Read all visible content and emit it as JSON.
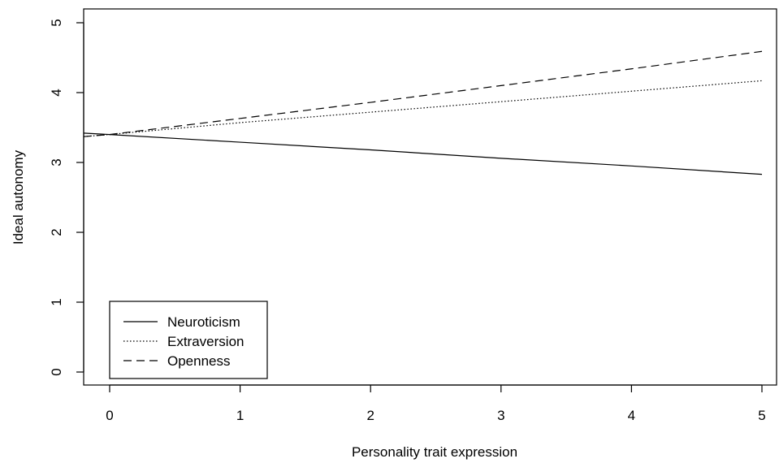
{
  "chart_data": {
    "type": "line",
    "title": "",
    "xlabel": "Personality trait expression",
    "ylabel": "Ideal autonomy",
    "xlim": [
      -0.2,
      5.1
    ],
    "ylim": [
      -0.2,
      5.2
    ],
    "x_ticks": [
      "0",
      "1",
      "2",
      "3",
      "4",
      "5"
    ],
    "y_ticks": [
      "0",
      "1",
      "2",
      "3",
      "4",
      "5"
    ],
    "grid": false,
    "legend_position": "bottom-left",
    "series": [
      {
        "name": "Neuroticism",
        "style": "solid",
        "x": [
          -0.2,
          0,
          1,
          2,
          3,
          4,
          5
        ],
        "y": [
          3.42,
          3.4,
          3.29,
          3.18,
          3.06,
          2.95,
          2.83
        ]
      },
      {
        "name": "Extraversion",
        "style": "dotted",
        "x": [
          -0.2,
          0,
          1,
          2,
          3,
          4,
          5
        ],
        "y": [
          3.37,
          3.4,
          3.57,
          3.72,
          3.87,
          4.02,
          4.17
        ]
      },
      {
        "name": "Openness",
        "style": "dashed",
        "x": [
          -0.2,
          0,
          1,
          2,
          3,
          4,
          5
        ],
        "y": [
          3.37,
          3.4,
          3.63,
          3.86,
          4.1,
          4.34,
          4.59
        ]
      }
    ]
  }
}
